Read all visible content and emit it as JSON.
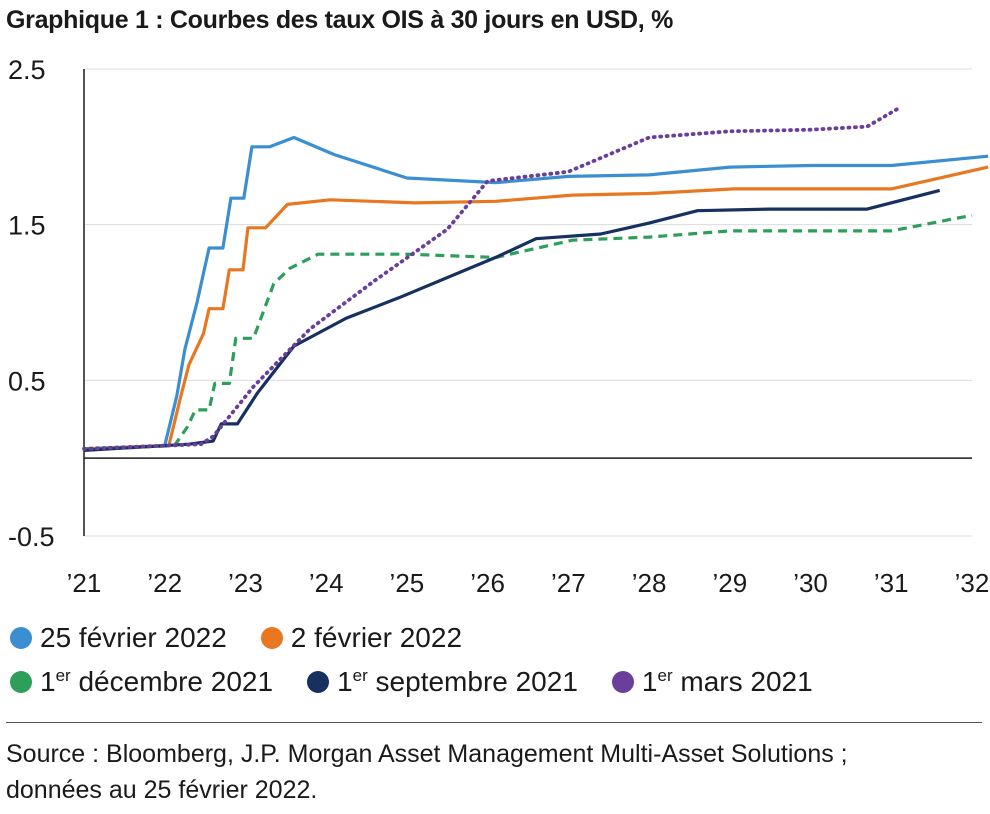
{
  "title": "Graphique 1 : Courbes des taux OIS à 30 jours en USD, %",
  "source": "Source : Bloomberg, J.P. Morgan Asset Management Multi-Asset Solutions ; données au 25 février 2022.",
  "chart_data": {
    "type": "line",
    "title": "Graphique 1 : Courbes des taux OIS à 30 jours en USD, %",
    "xlabel": "",
    "ylabel": "",
    "xlim": [
      2021,
      2032
    ],
    "ylim": [
      -0.5,
      2.5
    ],
    "x_ticks": [
      2021,
      2022,
      2023,
      2024,
      2025,
      2026,
      2027,
      2028,
      2029,
      2030,
      2031,
      2032
    ],
    "x_tick_labels": [
      "’21",
      "’22",
      "’23",
      "’24",
      "’25",
      "’26",
      "’27",
      "’28",
      "’29",
      "’30",
      "’31",
      "’32"
    ],
    "y_ticks": [
      2.5,
      1.5,
      0.5,
      -0.5
    ],
    "y_tick_labels": [
      "2.5",
      "1.5",
      "0.5",
      "-0.5"
    ],
    "grid": "horizontal",
    "zero_line": true,
    "legend_position": "bottom",
    "series": [
      {
        "name": "25 février 2022",
        "color": "#3b8fd0",
        "dash": "solid",
        "points": [
          [
            2021.0,
            0.06
          ],
          [
            2022.0,
            0.08
          ],
          [
            2022.15,
            0.4
          ],
          [
            2022.25,
            0.7
          ],
          [
            2022.4,
            1.0
          ],
          [
            2022.55,
            1.35
          ],
          [
            2022.72,
            1.35
          ],
          [
            2022.82,
            1.67
          ],
          [
            2022.98,
            1.67
          ],
          [
            2023.08,
            2.0
          ],
          [
            2023.3,
            2.0
          ],
          [
            2023.6,
            2.06
          ],
          [
            2024.1,
            1.95
          ],
          [
            2025.0,
            1.8
          ],
          [
            2026.1,
            1.77
          ],
          [
            2027.0,
            1.81
          ],
          [
            2028.0,
            1.82
          ],
          [
            2029.0,
            1.87
          ],
          [
            2030.0,
            1.88
          ],
          [
            2031.0,
            1.88
          ],
          [
            2032.2,
            1.94
          ]
        ]
      },
      {
        "name": "2 février 2022",
        "color": "#e87722",
        "dash": "solid",
        "points": [
          [
            2021.0,
            0.06
          ],
          [
            2022.05,
            0.08
          ],
          [
            2022.2,
            0.4
          ],
          [
            2022.3,
            0.6
          ],
          [
            2022.48,
            0.8
          ],
          [
            2022.55,
            0.96
          ],
          [
            2022.72,
            0.96
          ],
          [
            2022.8,
            1.21
          ],
          [
            2022.97,
            1.21
          ],
          [
            2023.03,
            1.48
          ],
          [
            2023.25,
            1.48
          ],
          [
            2023.52,
            1.63
          ],
          [
            2024.05,
            1.66
          ],
          [
            2025.1,
            1.64
          ],
          [
            2026.1,
            1.65
          ],
          [
            2027.05,
            1.69
          ],
          [
            2028.0,
            1.7
          ],
          [
            2029.05,
            1.73
          ],
          [
            2030.0,
            1.73
          ],
          [
            2031.0,
            1.73
          ],
          [
            2032.2,
            1.87
          ]
        ]
      },
      {
        "name": "1er décembre 2021",
        "color": "#2e9e5b",
        "dash": "dashed",
        "points": [
          [
            2021.0,
            0.06
          ],
          [
            2022.12,
            0.08
          ],
          [
            2022.28,
            0.2
          ],
          [
            2022.38,
            0.31
          ],
          [
            2022.55,
            0.31
          ],
          [
            2022.62,
            0.48
          ],
          [
            2022.8,
            0.48
          ],
          [
            2022.88,
            0.77
          ],
          [
            2023.1,
            0.77
          ],
          [
            2023.35,
            1.12
          ],
          [
            2023.55,
            1.22
          ],
          [
            2023.9,
            1.31
          ],
          [
            2025.0,
            1.31
          ],
          [
            2026.1,
            1.29
          ],
          [
            2027.05,
            1.4
          ],
          [
            2028.0,
            1.42
          ],
          [
            2029.0,
            1.46
          ],
          [
            2030.0,
            1.46
          ],
          [
            2031.0,
            1.46
          ],
          [
            2032.0,
            1.56
          ]
        ]
      },
      {
        "name": "1er septembre 2021",
        "color": "#16305f",
        "dash": "solid",
        "points": [
          [
            2021.0,
            0.05
          ],
          [
            2022.3,
            0.09
          ],
          [
            2022.6,
            0.11
          ],
          [
            2022.7,
            0.22
          ],
          [
            2022.9,
            0.22
          ],
          [
            2023.15,
            0.42
          ],
          [
            2023.6,
            0.72
          ],
          [
            2024.25,
            0.9
          ],
          [
            2024.9,
            1.03
          ],
          [
            2026.1,
            1.29
          ],
          [
            2026.6,
            1.41
          ],
          [
            2027.4,
            1.44
          ],
          [
            2028.0,
            1.51
          ],
          [
            2028.6,
            1.59
          ],
          [
            2029.5,
            1.6
          ],
          [
            2030.7,
            1.6
          ],
          [
            2031.6,
            1.72
          ]
        ]
      },
      {
        "name": "1er mars 2021",
        "color": "#6a3f9b",
        "dash": "dotted",
        "points": [
          [
            2021.0,
            0.06
          ],
          [
            2022.45,
            0.09
          ],
          [
            2022.6,
            0.14
          ],
          [
            2023.1,
            0.46
          ],
          [
            2023.8,
            0.83
          ],
          [
            2024.6,
            1.14
          ],
          [
            2025.5,
            1.47
          ],
          [
            2026.0,
            1.78
          ],
          [
            2027.0,
            1.84
          ],
          [
            2028.0,
            2.06
          ],
          [
            2029.0,
            2.1
          ],
          [
            2030.0,
            2.11
          ],
          [
            2030.7,
            2.13
          ],
          [
            2031.1,
            2.25
          ]
        ]
      }
    ]
  },
  "legend": {
    "row1": [
      {
        "label": "25 février 2022",
        "color": "#3b8fd0"
      },
      {
        "label": "2 février 2022",
        "color": "#e87722"
      }
    ],
    "row2": [
      {
        "prefix": "1",
        "sup": "er",
        "label": " décembre 2021",
        "color": "#2e9e5b"
      },
      {
        "prefix": "1",
        "sup": "er",
        "label": " septembre 2021",
        "color": "#16305f"
      },
      {
        "prefix": "1",
        "sup": "er",
        "label": " mars 2021",
        "color": "#6a3f9b"
      }
    ]
  }
}
